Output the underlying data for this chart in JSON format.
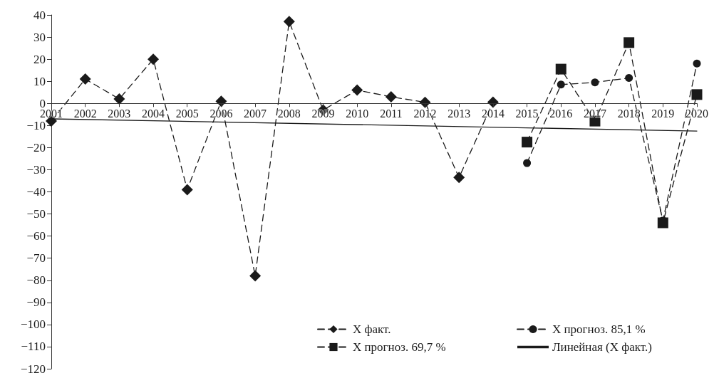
{
  "chart_data": {
    "type": "line",
    "categories": [
      "2001",
      "2002",
      "2003",
      "2004",
      "2005",
      "2006",
      "2007",
      "2008",
      "2009",
      "2010",
      "2011",
      "2012",
      "2013",
      "2014",
      "2015",
      "2016",
      "2017",
      "2018",
      "2019",
      "2020"
    ],
    "ylim": [
      -120,
      40
    ],
    "yticks": [
      -120,
      -110,
      -100,
      -90,
      -80,
      -70,
      -60,
      -50,
      -40,
      -30,
      -20,
      -10,
      0,
      10,
      20,
      30,
      40
    ],
    "grid": false,
    "legend": "bottom right",
    "series": [
      {
        "name": "X факт.",
        "color": "#1a1a1a",
        "marker": "diamond",
        "line_style": "dashed",
        "values": [
          -8,
          11,
          2,
          20,
          -39,
          1,
          -78,
          37,
          -3,
          6,
          3,
          0.5,
          -33.5,
          0.6,
          null,
          null,
          null,
          null,
          null,
          null
        ]
      },
      {
        "name": "X прогноз. 85,1 %",
        "color": "#1a1a1a",
        "marker": "circle",
        "line_style": "dashed",
        "values": [
          null,
          null,
          null,
          null,
          null,
          null,
          null,
          null,
          null,
          null,
          null,
          null,
          null,
          null,
          -27,
          8.5,
          9.5,
          11.5,
          -53,
          18
        ]
      },
      {
        "name": "X прогноз. 69,7 %",
        "color": "#1a1a1a",
        "marker": "square",
        "line_style": "dashed",
        "values": [
          null,
          null,
          null,
          null,
          null,
          null,
          null,
          null,
          null,
          null,
          null,
          null,
          null,
          null,
          -17.5,
          15.5,
          -8,
          27.5,
          -54,
          4
        ]
      },
      {
        "name": "Линейная (X факт.)",
        "color": "#1a1a1a",
        "marker": "none",
        "line_style": "solid",
        "values": [
          -7,
          null,
          null,
          null,
          null,
          null,
          null,
          null,
          null,
          null,
          null,
          null,
          null,
          null,
          null,
          null,
          null,
          null,
          null,
          -12.5
        ]
      }
    ]
  }
}
